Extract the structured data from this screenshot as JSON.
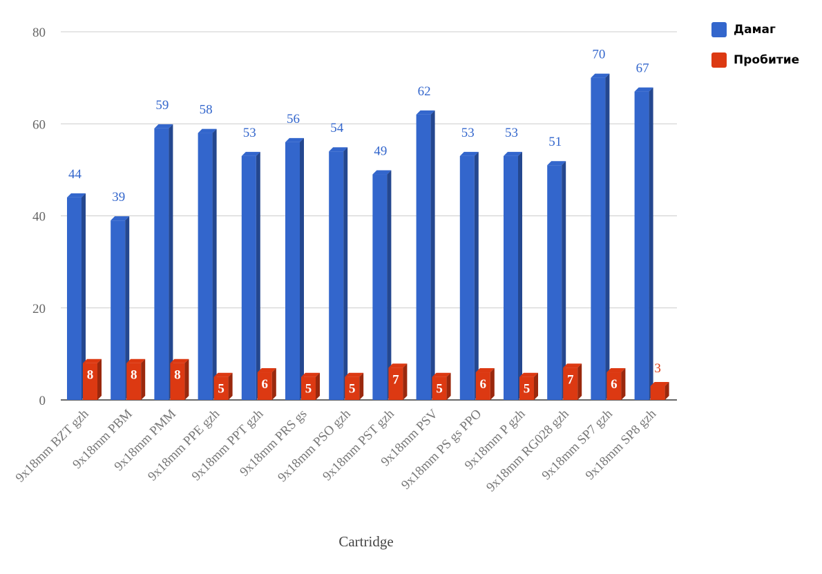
{
  "chart_data": {
    "type": "bar",
    "xlabel": "Cartridge",
    "ylabel": "",
    "ylim": [
      0,
      80
    ],
    "yticks": [
      0,
      20,
      40,
      60,
      80
    ],
    "grid": true,
    "legend_position": "top-right",
    "categories": [
      "9x18mm BZT gzh",
      "9x18mm PBM",
      "9x18mm PMM",
      "9x18mm PPE gzh",
      "9x18mm PPT gzh",
      "9x18mm PRS gs",
      "9x18mm PSO gzh",
      "9x18mm PST gzh",
      "9x18mm PSV",
      "9x18mm PS gs PPO",
      "9x18mm P gzh",
      "9x18mm RG028 gzh",
      "9x18mm SP7 gzh",
      "9x18mm SP8 gzh"
    ],
    "series": [
      {
        "name": "Дамаг",
        "color": "#3366cc",
        "values": [
          44,
          39,
          59,
          58,
          53,
          56,
          54,
          49,
          62,
          53,
          53,
          51,
          70,
          67
        ]
      },
      {
        "name": "Пробитие",
        "color": "#dc3912",
        "values": [
          8,
          8,
          8,
          5,
          6,
          5,
          5,
          7,
          5,
          6,
          5,
          7,
          6,
          3
        ]
      }
    ]
  }
}
